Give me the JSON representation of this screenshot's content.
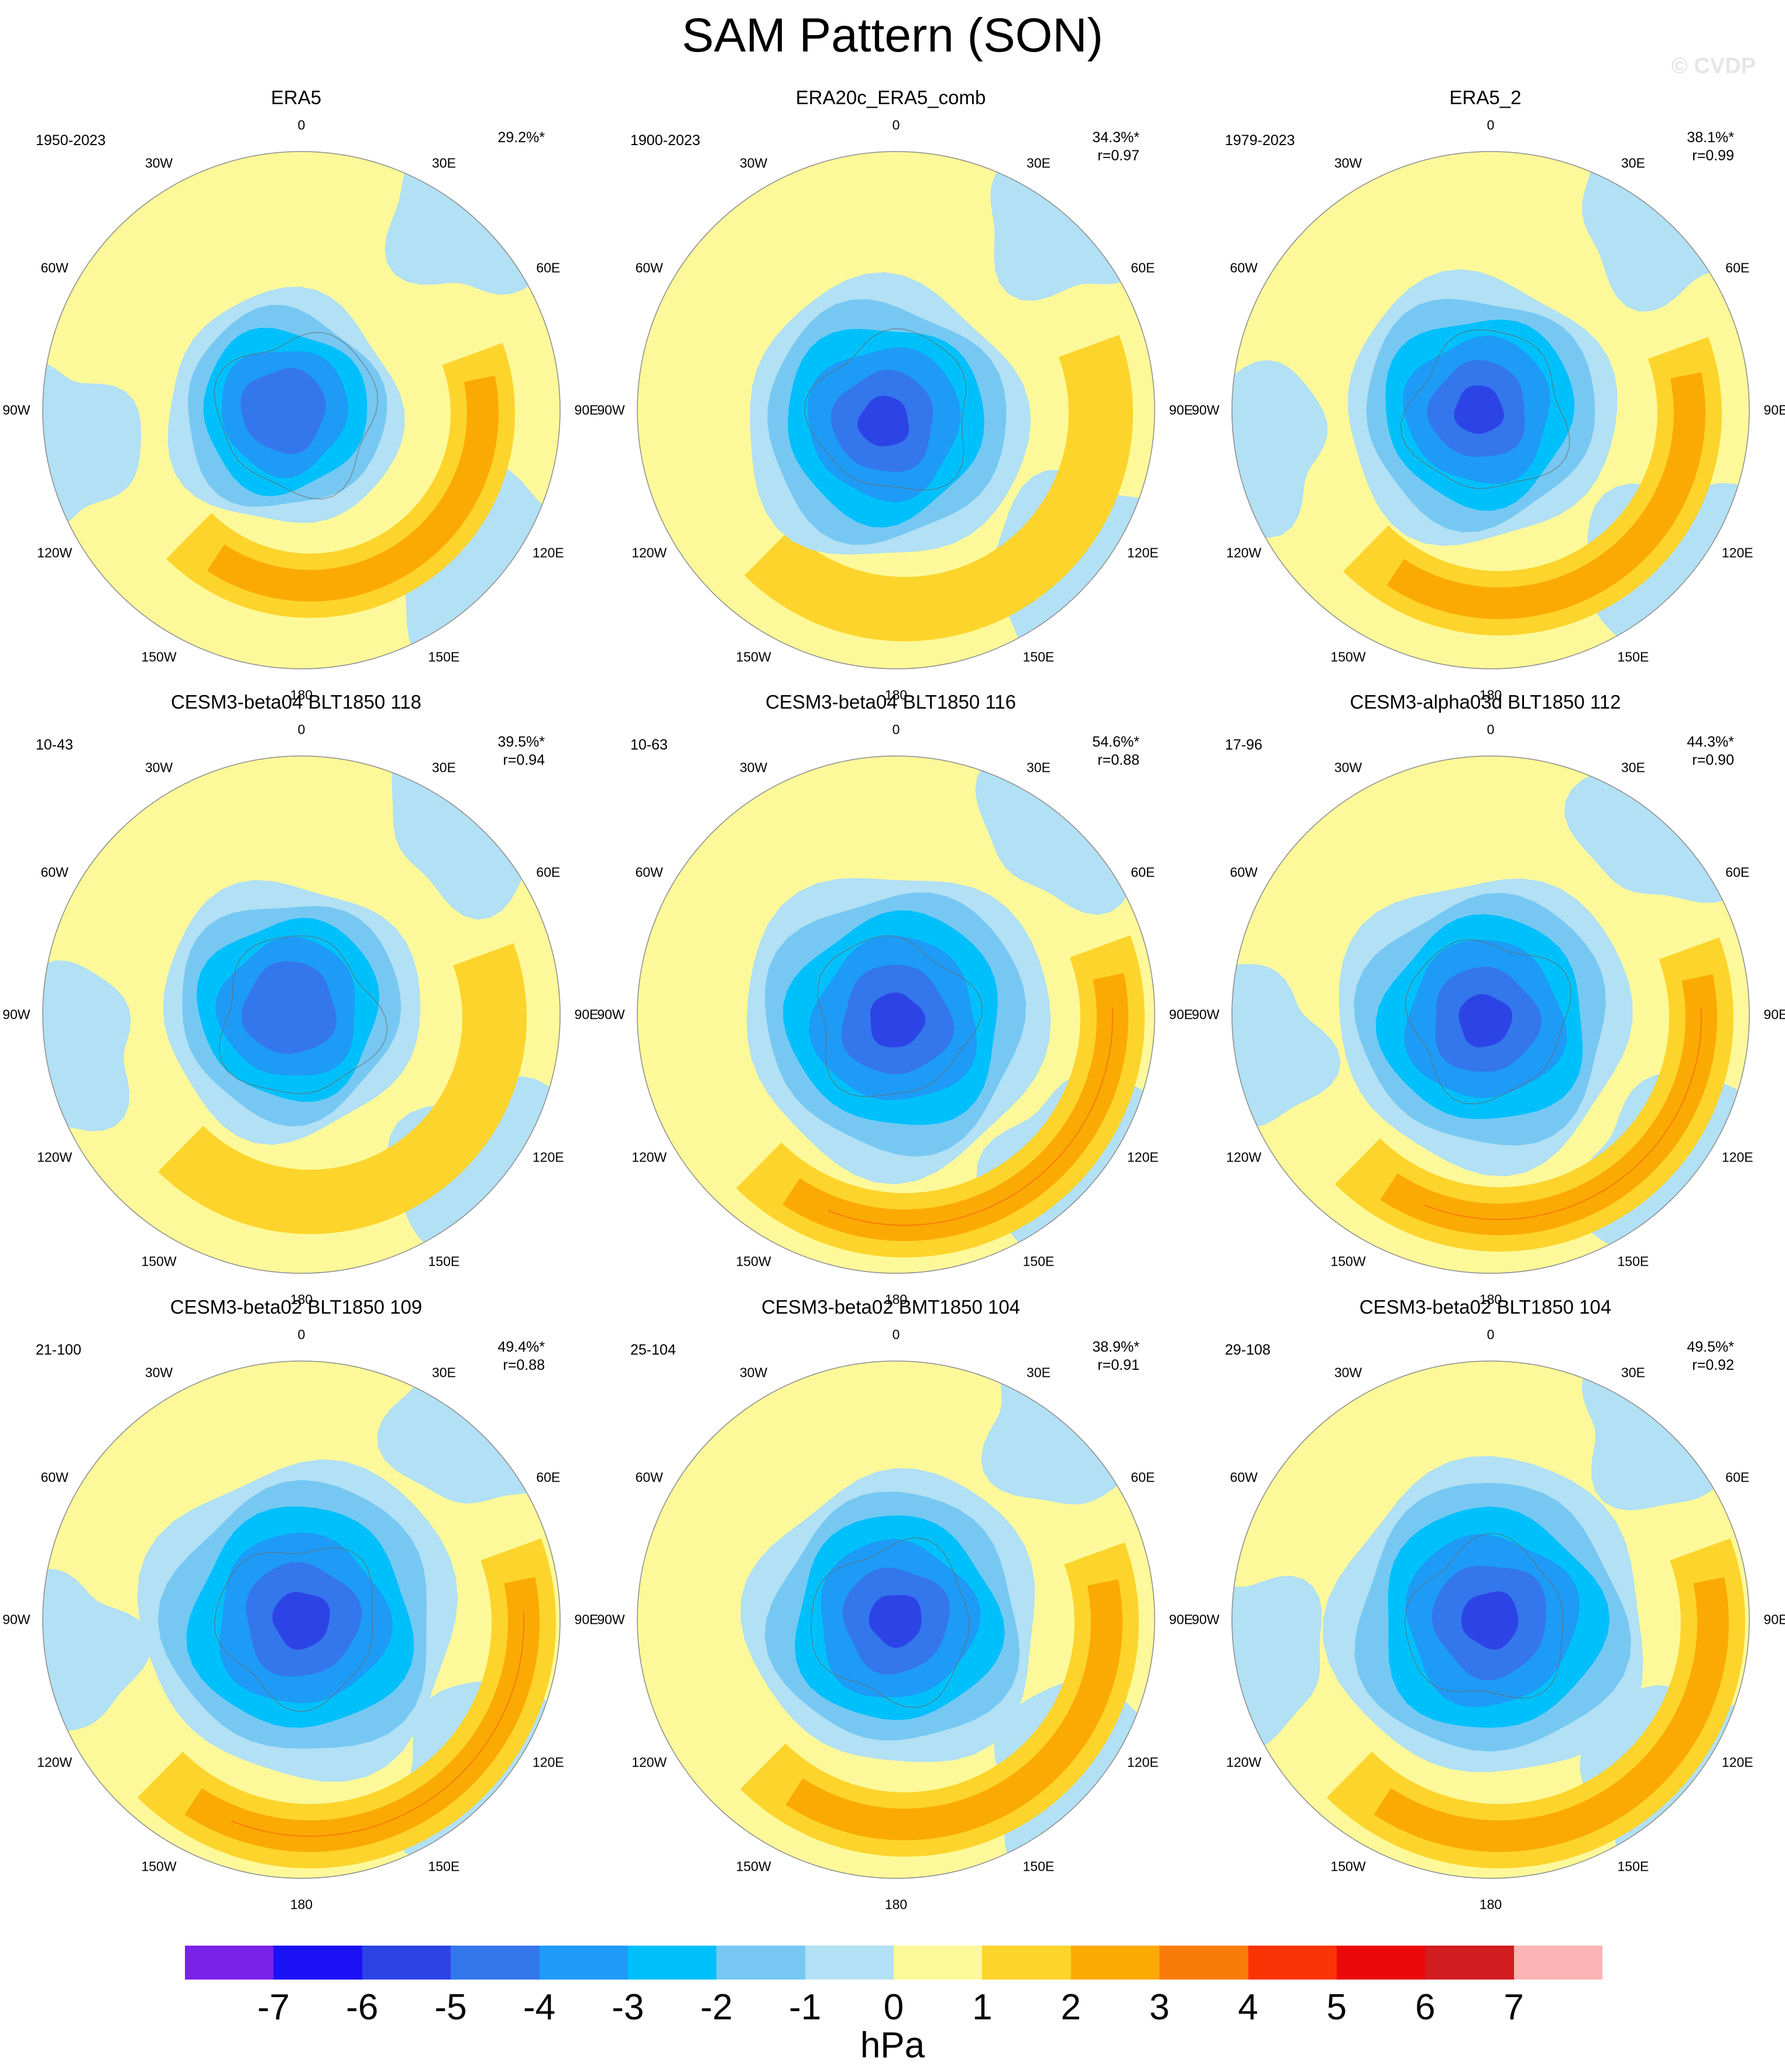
{
  "title": "SAM Pattern (SON)",
  "watermark": "© CVDP",
  "lon_labels": [
    "0",
    "30E",
    "60E",
    "90E",
    "120E",
    "150E",
    "180",
    "150W",
    "120W",
    "90W",
    "60W",
    "30W"
  ],
  "panels": [
    {
      "name": "ERA5",
      "period": "1950-2023",
      "pct": "29.2%*",
      "r": ""
    },
    {
      "name": "ERA20c_ERA5_comb",
      "period": "1900-2023",
      "pct": "34.3%*",
      "r": "r=0.97"
    },
    {
      "name": "ERA5_2",
      "period": "1979-2023",
      "pct": "38.1%*",
      "r": "r=0.99"
    },
    {
      "name": "CESM3-beta04 BLT1850 118",
      "period": "10-43",
      "pct": "39.5%*",
      "r": "r=0.94"
    },
    {
      "name": "CESM3-beta04 BLT1850 116",
      "period": "10-63",
      "pct": "54.6%*",
      "r": "r=0.88"
    },
    {
      "name": "CESM3-alpha03d BLT1850 112",
      "period": "17-96",
      "pct": "44.3%*",
      "r": "r=0.90"
    },
    {
      "name": "CESM3-beta02 BLT1850 109",
      "period": "21-100",
      "pct": "49.4%*",
      "r": "r=0.88"
    },
    {
      "name": "CESM3-beta02 BMT1850 104",
      "period": "25-104",
      "pct": "38.9%*",
      "r": "r=0.91"
    },
    {
      "name": "CESM3-beta02 BLT1850 104",
      "period": "29-108",
      "pct": "49.5%*",
      "r": "r=0.92"
    }
  ],
  "colorbar": {
    "colors": [
      "#7b22e8",
      "#1a12f5",
      "#2c44e6",
      "#3476ec",
      "#1e9bf6",
      "#00c0fb",
      "#76c8f2",
      "#b2e0f4",
      "#fdf99a",
      "#fdd42c",
      "#fbaa04",
      "#f97c0a",
      "#fb3406",
      "#ea0808",
      "#d11c20",
      "#fcb4b4"
    ],
    "ticks": [
      "-7",
      "-6",
      "-5",
      "-4",
      "-3",
      "-2",
      "-1",
      "0",
      "1",
      "2",
      "3",
      "4",
      "5",
      "6",
      "7"
    ],
    "units": "hPa"
  },
  "map_colors": {
    "yellow": "#fdf99a",
    "lightblue": "#b2e0f4",
    "blue1": "#76c8f2",
    "blue2": "#00c0fb",
    "blue3": "#1e9bf6",
    "blue4": "#3476ec",
    "blue5": "#2c44e6",
    "orange1": "#fdd42c",
    "orange2": "#fbaa04",
    "orange3": "#f97c0a"
  }
}
